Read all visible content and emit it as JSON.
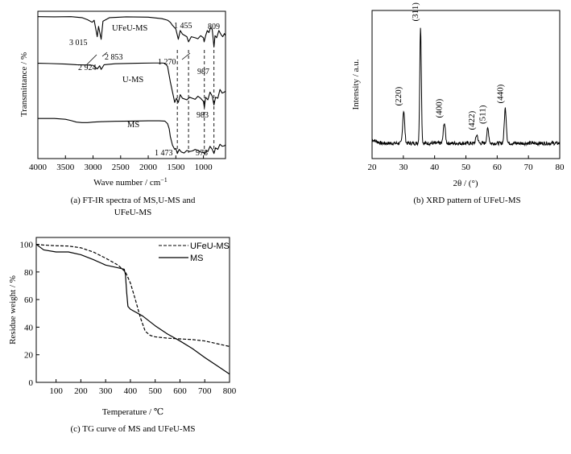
{
  "chart_data": [
    {
      "id": "ftir",
      "type": "line",
      "caption_line1": "(a) FT-IR spectra of MS,U-MS and",
      "caption_line2": "UFeU-MS",
      "xlabel": "Wave number / cm",
      "xlabel_sup": "−1",
      "ylabel": "Transmittance / %",
      "xlim": [
        4000,
        600
      ],
      "x_reversed": true,
      "xticks": [
        4000,
        3500,
        3000,
        2500,
        2000,
        1500,
        1000
      ],
      "y_ticks_shown": false,
      "series": [
        {
          "name": "UFeU-MS",
          "x": [
            4000,
            3700,
            3400,
            3200,
            3100,
            3015,
            2980,
            2924,
            2900,
            2853,
            2820,
            2700,
            2400,
            2000,
            1750,
            1650,
            1600,
            1560,
            1500,
            1455,
            1420,
            1380,
            1300,
            1270,
            1220,
            1150,
            1100,
            1050,
            1000,
            987,
            960,
            930,
            900,
            870,
            840,
            809,
            790,
            760,
            720,
            680,
            650,
            620,
            600
          ],
          "y": [
            0.99,
            0.985,
            0.99,
            0.97,
            0.93,
            0.88,
            0.92,
            0.6,
            0.8,
            0.55,
            0.9,
            0.97,
            0.985,
            0.98,
            0.95,
            0.92,
            0.88,
            0.82,
            0.75,
            0.55,
            0.72,
            0.65,
            0.6,
            0.5,
            0.6,
            0.58,
            0.56,
            0.62,
            0.58,
            0.5,
            0.62,
            0.72,
            0.68,
            0.78,
            0.74,
            0.4,
            0.62,
            0.58,
            0.72,
            0.64,
            0.6,
            0.66,
            0.62
          ]
        },
        {
          "name": "U-MS",
          "x": [
            4000,
            3800,
            3500,
            3300,
            3100,
            3000,
            2924,
            2880,
            2853,
            2800,
            2600,
            2200,
            1900,
            1750,
            1700,
            1650,
            1600,
            1550,
            1520,
            1490,
            1455,
            1420,
            1380,
            1300,
            1250,
            1200,
            1150,
            1100,
            1050,
            1000,
            983,
            960,
            920,
            880,
            840,
            809,
            780,
            740,
            700,
            660,
            620,
            600
          ],
          "y": [
            0.96,
            0.955,
            0.945,
            0.93,
            0.925,
            0.92,
            0.85,
            0.91,
            0.84,
            0.93,
            0.95,
            0.96,
            0.965,
            0.965,
            0.96,
            0.9,
            0.6,
            0.35,
            0.2,
            0.28,
            0.2,
            0.35,
            0.28,
            0.25,
            0.3,
            0.28,
            0.26,
            0.32,
            0.28,
            0.22,
            0.1,
            0.3,
            0.25,
            0.4,
            0.32,
            0.15,
            0.3,
            0.28,
            0.45,
            0.38,
            0.4,
            0.42
          ]
        },
        {
          "name": "MS",
          "x": [
            4000,
            3700,
            3500,
            3400,
            3300,
            3200,
            3100,
            3000,
            2900,
            2800,
            2600,
            2300,
            2000,
            1800,
            1700,
            1650,
            1620,
            1600,
            1560,
            1520,
            1500,
            1473,
            1440,
            1400,
            1350,
            1300,
            1250,
            1200,
            1150,
            1100,
            1050,
            1000,
            973,
            950,
            920,
            880,
            840,
            809,
            780,
            740,
            700,
            660,
            620,
            600
          ],
          "y": [
            0.7,
            0.7,
            0.685,
            0.66,
            0.63,
            0.62,
            0.62,
            0.63,
            0.635,
            0.64,
            0.645,
            0.65,
            0.655,
            0.655,
            0.65,
            0.6,
            0.5,
            0.35,
            0.18,
            0.1,
            0.12,
            0.02,
            0.1,
            0.05,
            0.03,
            0.08,
            0.06,
            0.07,
            0.1,
            0.08,
            0.05,
            0.04,
            0.01,
            0.08,
            0.06,
            0.16,
            0.1,
            0.02,
            0.13,
            0.1,
            0.2,
            0.16,
            0.17,
            0.19
          ]
        }
      ],
      "series_labels": [
        "UFeU-MS",
        "U-MS",
        "MS"
      ],
      "annotations": [
        "3 015",
        "2 924",
        "2 853",
        "1 455",
        "1 270",
        "809",
        "987",
        "983",
        "1 473",
        "973"
      ],
      "dashed_lines_at": [
        1473,
        1270,
        983,
        809
      ]
    },
    {
      "id": "xrd",
      "type": "line",
      "caption": "(b) XRD pattern of UFeU-MS",
      "xlabel": "2θ / (°)",
      "ylabel": "Intensity / a.u.",
      "xlim": [
        20,
        80
      ],
      "xticks": [
        20,
        30,
        40,
        50,
        60,
        70,
        80
      ],
      "y_ticks_shown": false,
      "peaks": [
        {
          "label": "(220)",
          "x": 30.1,
          "height": 0.27
        },
        {
          "label": "(311)",
          "x": 35.5,
          "height": 0.97
        },
        {
          "label": "(400)",
          "x": 43.1,
          "height": 0.17
        },
        {
          "label": "(422)",
          "x": 53.5,
          "height": 0.07
        },
        {
          "label": "(511)",
          "x": 57.0,
          "height": 0.12
        },
        {
          "label": "(440)",
          "x": 62.6,
          "height": 0.29
        }
      ]
    },
    {
      "id": "tg",
      "type": "line",
      "caption": "(c) TG curve of MS and UFeU-MS",
      "xlabel": "Temperature / ℃",
      "ylabel": "Residue weight / %",
      "xlim": [
        20,
        800
      ],
      "ylim": [
        0,
        105
      ],
      "xticks": [
        100,
        200,
        300,
        400,
        500,
        600,
        700,
        800
      ],
      "yticks": [
        0,
        20,
        40,
        60,
        80,
        100
      ],
      "legend_position": "top-right",
      "series": [
        {
          "name": "UFeU-MS",
          "style": "dashed",
          "x": [
            20,
            50,
            100,
            150,
            200,
            250,
            300,
            350,
            380,
            400,
            420,
            440,
            460,
            480,
            500,
            550,
            600,
            650,
            700,
            750,
            800
          ],
          "y": [
            100,
            99.5,
            99,
            98.8,
            97.5,
            94.5,
            90,
            85,
            80,
            72,
            60,
            47,
            37,
            34,
            33,
            32,
            31.5,
            31,
            30,
            28,
            26
          ]
        },
        {
          "name": "MS",
          "style": "solid",
          "x": [
            20,
            50,
            100,
            150,
            200,
            250,
            300,
            350,
            375,
            380,
            385,
            390,
            400,
            450,
            500,
            550,
            600,
            650,
            700,
            750,
            800
          ],
          "y": [
            100,
            96,
            94.5,
            94.5,
            92.5,
            89,
            85,
            83,
            82,
            78,
            65,
            55,
            53,
            48,
            41,
            35,
            30,
            24.5,
            18,
            12,
            6
          ]
        }
      ]
    }
  ]
}
